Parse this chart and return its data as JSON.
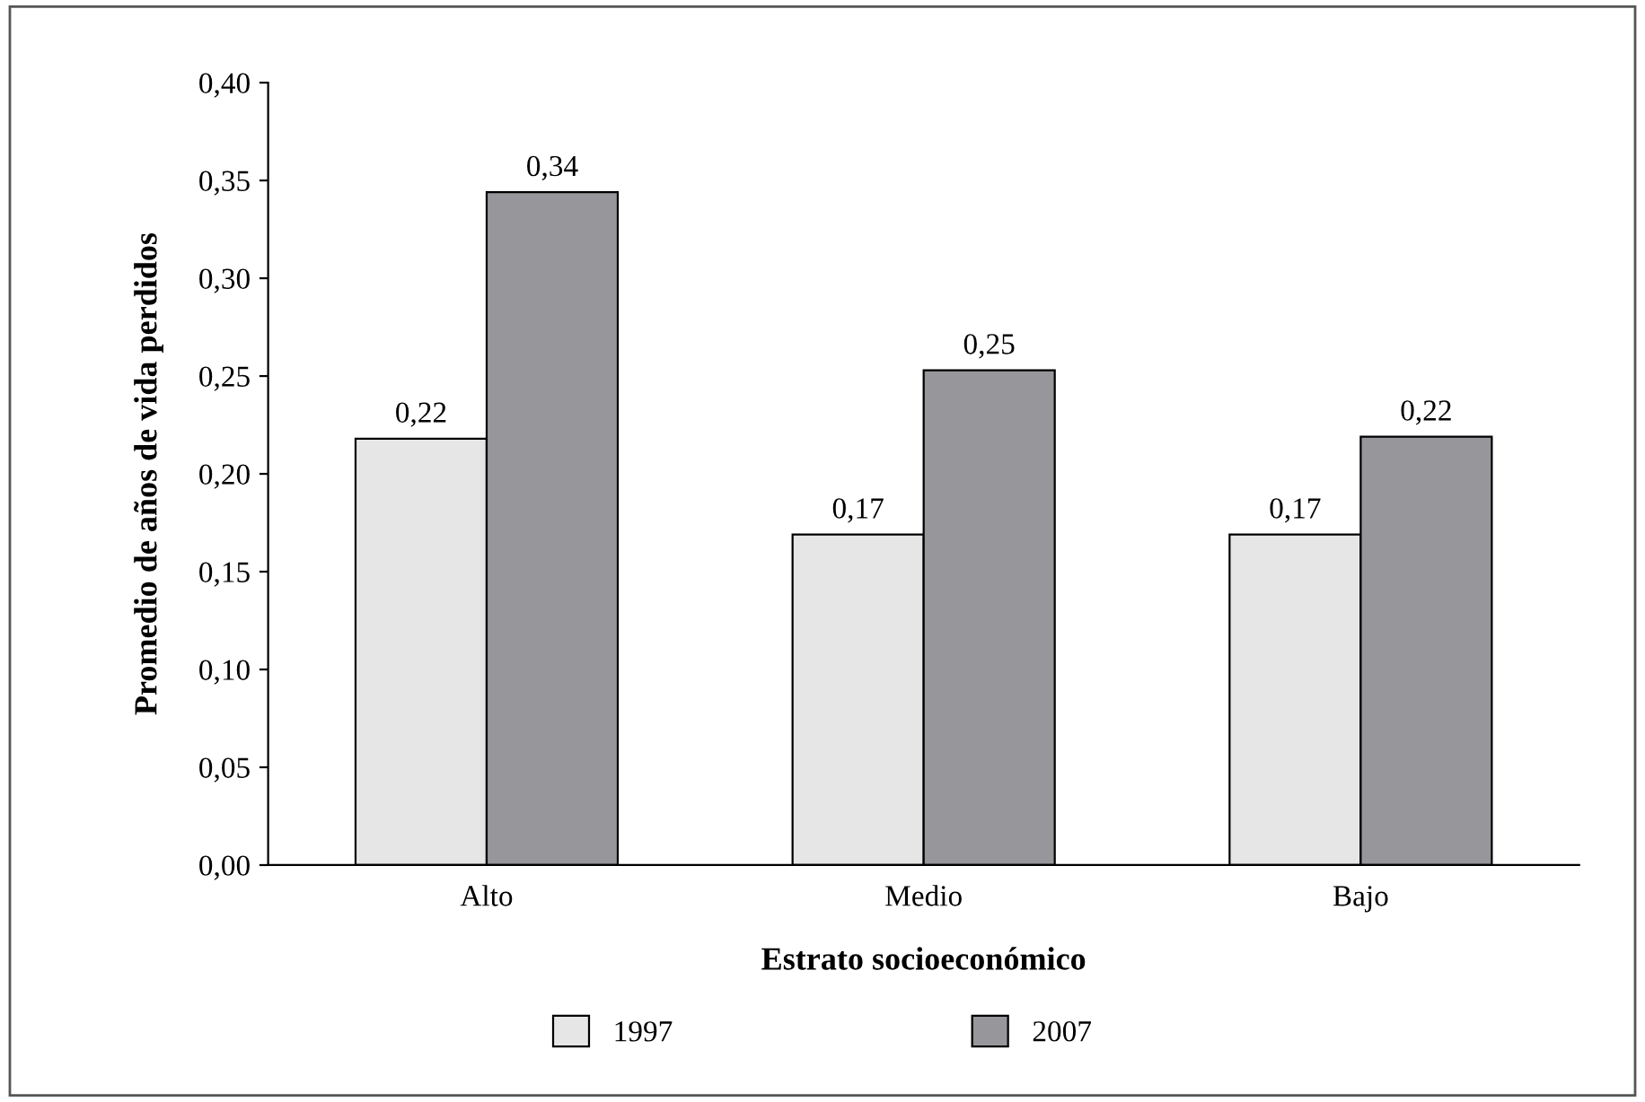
{
  "chart_data": {
    "type": "bar",
    "xlabel": "Estrato socioeconómico",
    "ylabel": "Promedio de años de vida perdidos",
    "categories": [
      "Alto",
      "Medio",
      "Bajo"
    ],
    "series": [
      {
        "name": "1997",
        "color": "#e6e6e6",
        "values": [
          0.218,
          0.169,
          0.169
        ],
        "value_labels": [
          "0,22",
          "0,17",
          "0,17"
        ]
      },
      {
        "name": "2007",
        "color": "#97979b",
        "values": [
          0.344,
          0.253,
          0.219
        ],
        "value_labels": [
          "0,34",
          "0,25",
          "0,22"
        ]
      }
    ],
    "ylim": [
      0,
      0.4
    ],
    "yticks": [
      {
        "value": 0,
        "label": "0,00"
      },
      {
        "value": 0.05,
        "label": "0,05"
      },
      {
        "value": 0.1,
        "label": "0,10"
      },
      {
        "value": 0.15,
        "label": "0,15"
      },
      {
        "value": 0.2,
        "label": "0,20"
      },
      {
        "value": 0.25,
        "label": "0,25"
      },
      {
        "value": 0.3,
        "label": "0,30"
      },
      {
        "value": 0.35,
        "label": "0,35"
      },
      {
        "value": 0.4,
        "label": "0,40"
      }
    ],
    "grid": false,
    "legend": "bottom"
  }
}
